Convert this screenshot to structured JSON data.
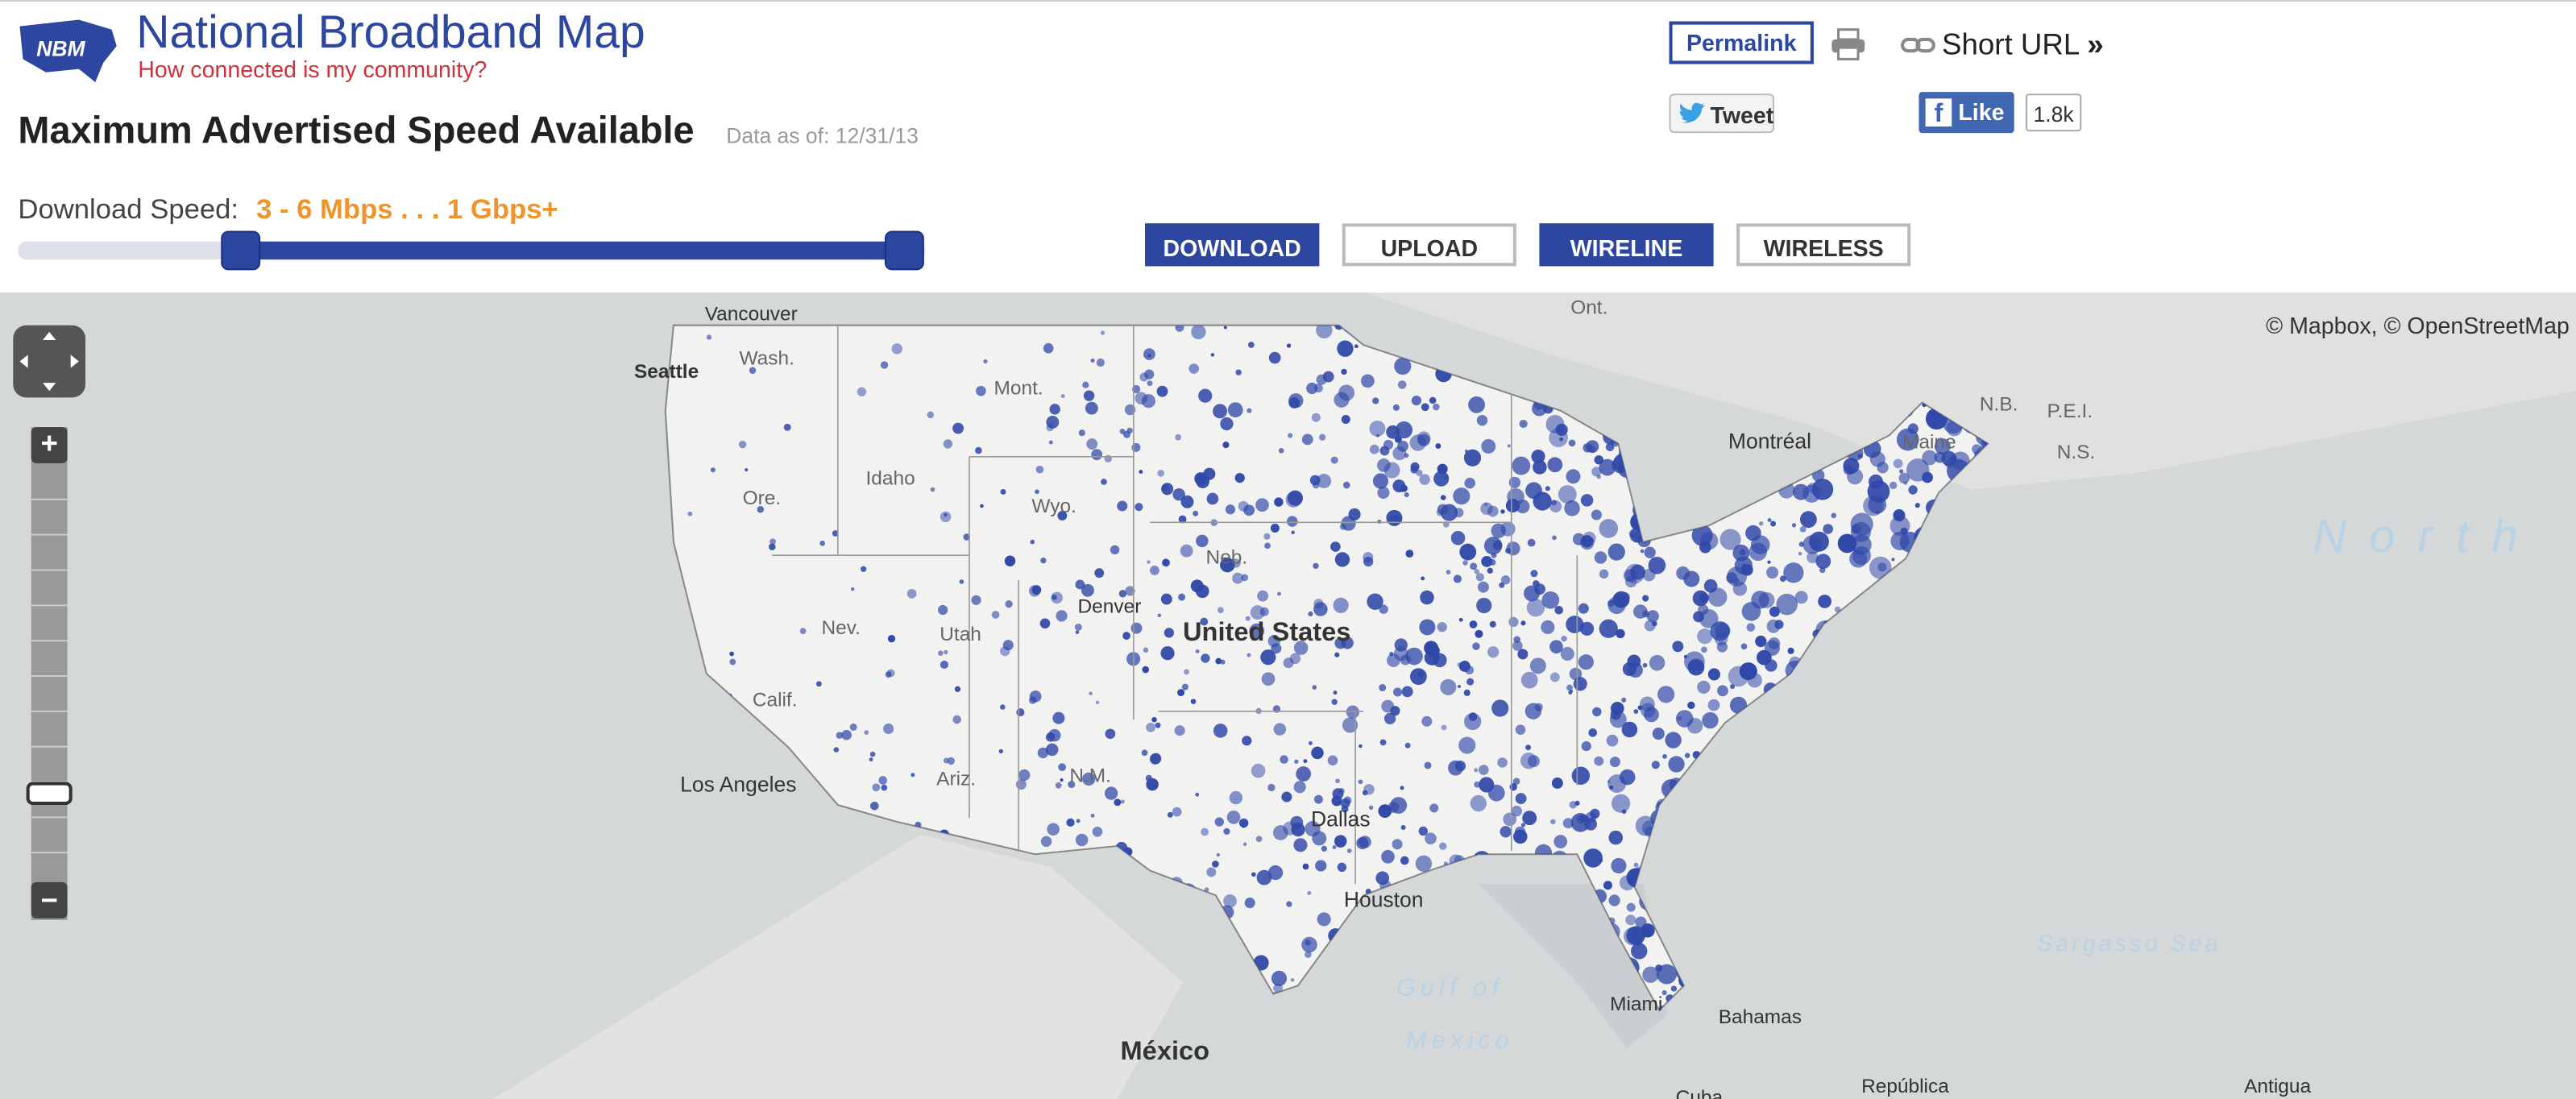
{
  "header": {
    "logo": "NBM",
    "title": "National Broadband Map",
    "tagline": "How connected is my community?"
  },
  "toolbar": {
    "permalink": "Permalink",
    "short_url": "Short URL",
    "short_url_arrow": "»",
    "tweet": "Tweet",
    "like": "Like",
    "like_count": "1.8k"
  },
  "page": {
    "title": "Maximum Advertised Speed Available",
    "data_as_of": "Data as of: 12/31/13"
  },
  "filter": {
    "label": "Download Speed:",
    "range": "3 - 6 Mbps . . . 1 Gbps+",
    "buttons": [
      "DOWNLOAD",
      "UPLOAD",
      "WIRELINE",
      "WIRELESS"
    ]
  },
  "map": {
    "attribution": "© Mapbox, © OpenStreetMap",
    "zoom_in": "+",
    "zoom_out": "−",
    "labels": [
      "Vancouver",
      "Seattle",
      "Wash.",
      "Mont.",
      "Idaho",
      "Ore.",
      "Wyo.",
      "Nev.",
      "Utah",
      "Neb.",
      "Denver",
      "United States",
      "Calif.",
      "Ariz.",
      "N.M.",
      "Los Angeles",
      "Dallas",
      "Houston",
      "Ont.",
      "Montréal",
      "N.B.",
      "P.E.I.",
      "N.S.",
      "Maine",
      "North",
      "Gulf of",
      "Mexico",
      "Sargasso Sea",
      "Miami",
      "Bahamas",
      "México",
      "Cuba",
      "República",
      "Antigua"
    ]
  }
}
